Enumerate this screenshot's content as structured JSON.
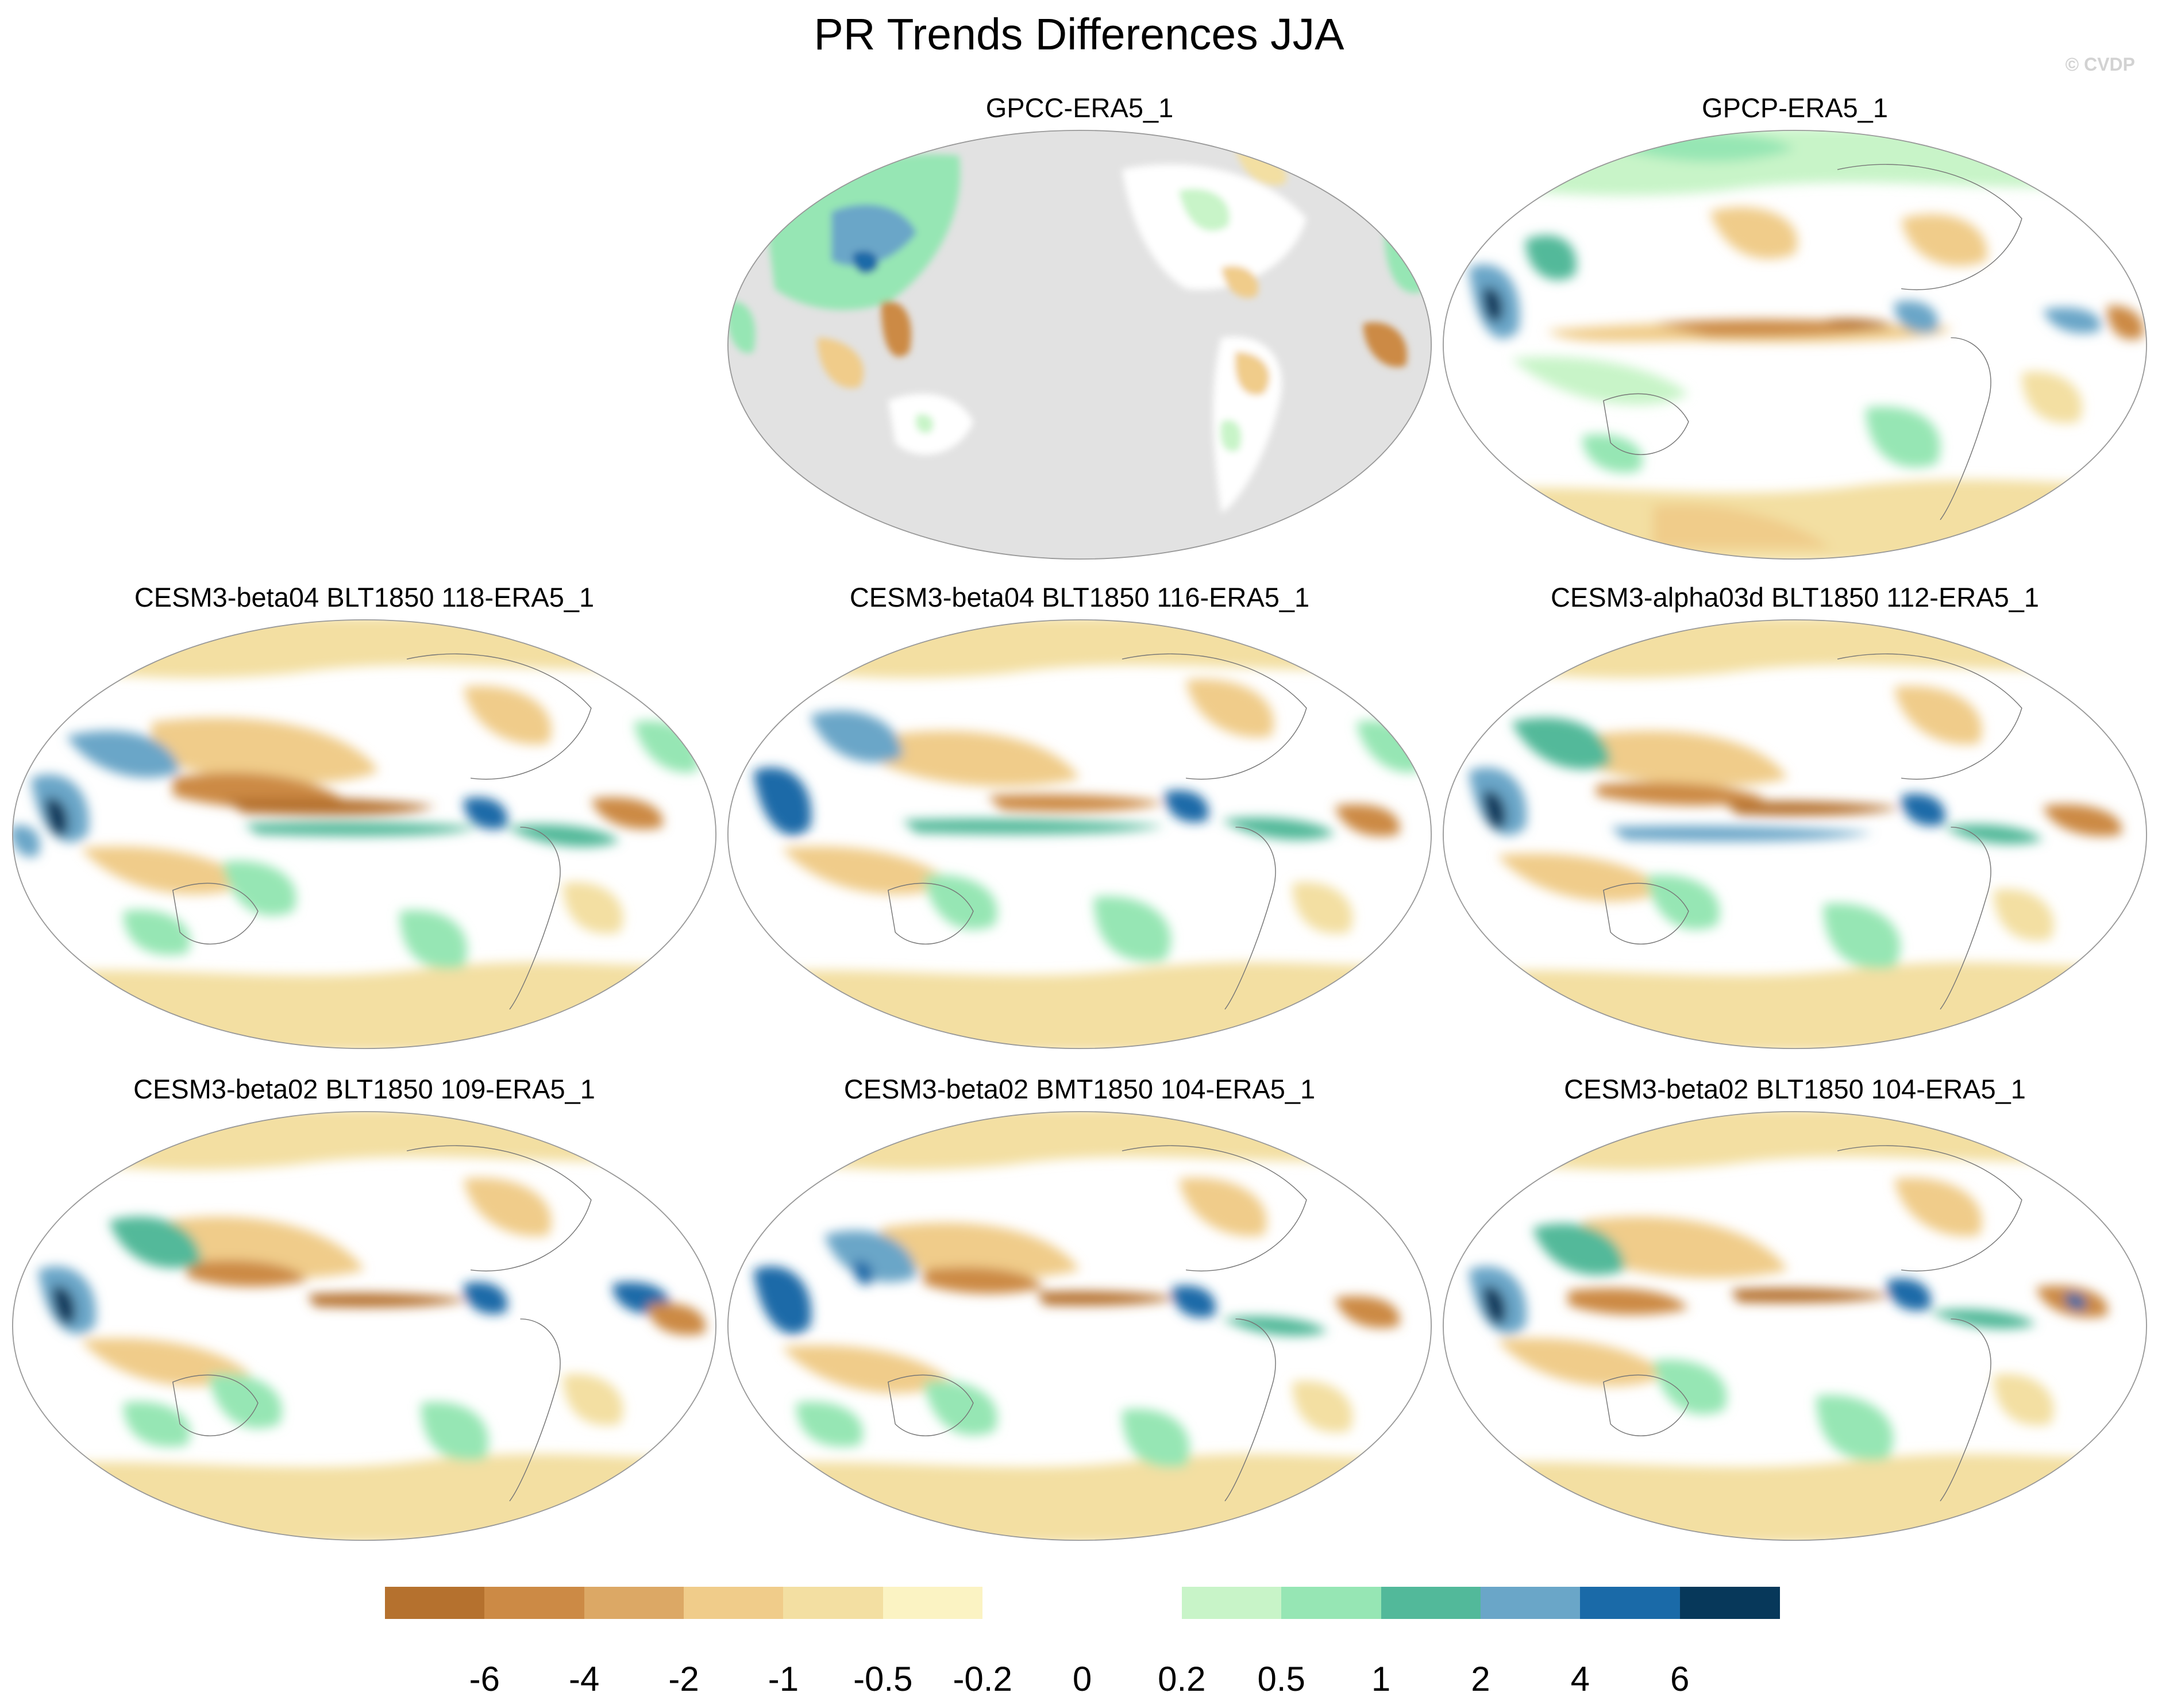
{
  "title": "PR Trends Differences JJA",
  "watermark": "© CVDP",
  "panels": [
    {
      "title": "GPCC-ERA5_1",
      "land_only": true
    },
    {
      "title": "GPCP-ERA5_1",
      "land_only": false
    },
    {
      "title": "CESM3-beta04 BLT1850 118-ERA5_1",
      "land_only": false
    },
    {
      "title": "CESM3-beta04 BLT1850 116-ERA5_1",
      "land_only": false
    },
    {
      "title": "CESM3-alpha03d BLT1850 112-ERA5_1",
      "land_only": false
    },
    {
      "title": "CESM3-beta02 BLT1850 109-ERA5_1",
      "land_only": false
    },
    {
      "title": "CESM3-beta02 BMT1850 104-ERA5_1",
      "land_only": false
    },
    {
      "title": "CESM3-beta02 BLT1850 104-ERA5_1",
      "land_only": false
    }
  ],
  "colorbar": {
    "colors": [
      "#b5712e",
      "#cc8a45",
      "#dca865",
      "#f0cc8a",
      "#f3dfa2",
      "#fbf3c3",
      "#ffffff",
      "#ffffff",
      "#c8f4c8",
      "#96e6b4",
      "#52b99a",
      "#6aa6c8",
      "#1a6aa8",
      "#07385a"
    ],
    "labels": [
      "-6",
      "-4",
      "-2",
      "-1",
      "-0.5",
      "-0.2",
      "0",
      "0.2",
      "0.5",
      "1",
      "2",
      "4",
      "6"
    ]
  }
}
